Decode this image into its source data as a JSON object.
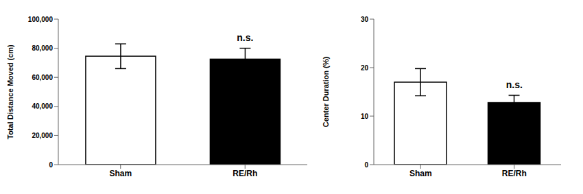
{
  "chart_data": [
    {
      "type": "bar",
      "categories": [
        "Sham",
        "RE/Rh"
      ],
      "values": [
        74500,
        72500
      ],
      "errors": [
        8500,
        7500
      ],
      "colors": [
        "#ffffff",
        "#000000"
      ],
      "ylabel": "Total Distance Moved (cm)",
      "ylim": [
        0,
        100000
      ],
      "yticks": [
        0,
        {
          "value": 20000,
          "label": "20,000"
        },
        {
          "value": 40000,
          "label": "40,000"
        },
        {
          "value": 60000,
          "label": "60,000"
        },
        {
          "value": 80000,
          "label": "80,000"
        },
        {
          "value": 100000,
          "label": "100,000"
        }
      ],
      "grid": false,
      "annotations": [
        {
          "text": "n.s.",
          "x": "RE/Rh"
        }
      ]
    },
    {
      "type": "bar",
      "categories": [
        "Sham",
        "RE/Rh"
      ],
      "values": [
        17.0,
        12.8
      ],
      "errors": [
        2.8,
        1.5
      ],
      "colors": [
        "#ffffff",
        "#000000"
      ],
      "ylabel": "Center Duration (%)",
      "ylim": [
        0,
        30
      ],
      "yticks": [
        0,
        10,
        20,
        30
      ],
      "grid": false,
      "annotations": [
        {
          "text": "n.s.",
          "x": "RE/Rh"
        }
      ]
    }
  ]
}
